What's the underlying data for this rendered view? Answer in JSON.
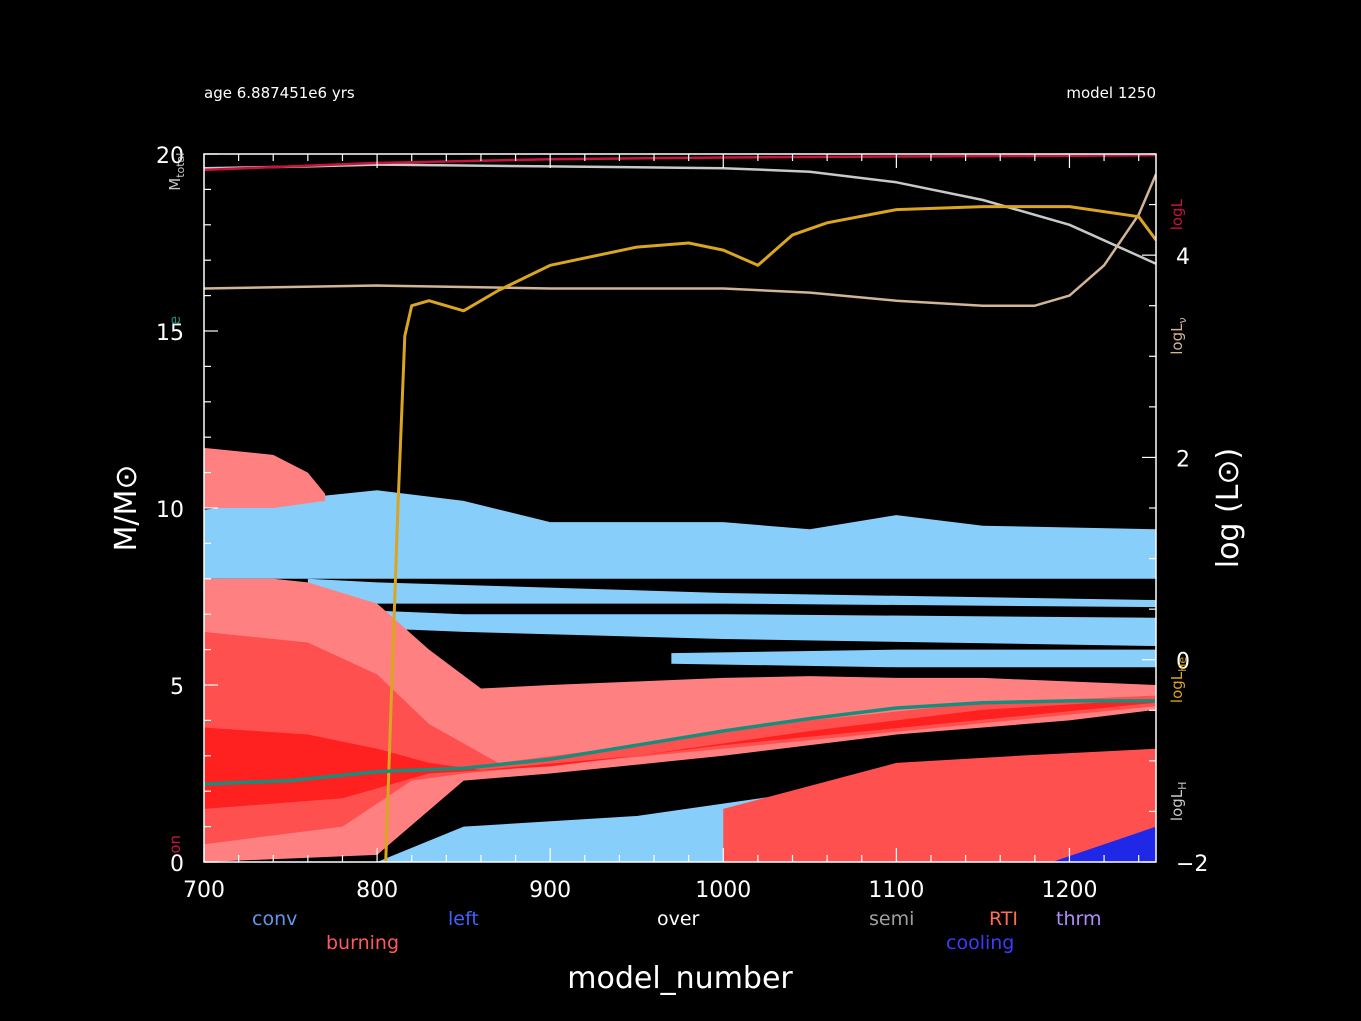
{
  "header": {
    "age": "age 6.887451e6 yrs",
    "model": "model 1250"
  },
  "colors": {
    "background": "#000000",
    "conv": "#87CEFA",
    "burning_light": "#FF8080",
    "burning_mid": "#FF5050",
    "burning_dark": "#FF2020",
    "cooling": "#1E28E6",
    "he_core": "#1A8C7C",
    "log_L": "#C8143C",
    "M_total": "#C8C8C8",
    "log_Lnu": "#D2B496",
    "log_LHe": "#DAA520",
    "log_LH": "#C8C8C8"
  },
  "legend": {
    "row1": [
      {
        "label": "conv",
        "color": "#6495ED"
      },
      {
        "label": "left",
        "color": "#3C64FF"
      },
      {
        "label": "over",
        "color": "#FFFFFF"
      },
      {
        "label": "semi",
        "color": "#A0A0A0"
      },
      {
        "label": "RTI",
        "color": "#FF6E50"
      },
      {
        "label": "thrm",
        "color": "#B48CFF"
      }
    ],
    "row2": [
      {
        "label": "burning",
        "color": "#FF5A5A"
      },
      {
        "label": "cooling",
        "color": "#3C3CFF"
      }
    ]
  },
  "chart_data": {
    "type": "area",
    "xlabel": "model_number",
    "ylabel_left": "M/M⊙",
    "ylabel_right": "log (L⊙)",
    "xlim": [
      700,
      1250
    ],
    "ylim_left": [
      0,
      20
    ],
    "ylim_right": [
      -2,
      5
    ],
    "x_ticks": [
      700,
      800,
      900,
      1000,
      1100,
      1200
    ],
    "y_left_ticks": [
      0,
      5,
      10,
      15,
      20
    ],
    "y_right_ticks": [
      -2,
      0,
      2,
      4
    ],
    "y_right_tick_labels": [
      "−2",
      "0",
      "2",
      "4"
    ],
    "side_labels_left": [
      {
        "text": "M",
        "sub": "total",
        "y": 19.5,
        "color": "#C8C8C8"
      },
      {
        "text": "e",
        "sub": "",
        "y": 15.3,
        "color": "#1A8C7C"
      },
      {
        "text": "on",
        "sub": "",
        "y": 0.5,
        "color": "#C8143C"
      }
    ],
    "side_labels_right": [
      {
        "text": "logL",
        "sub": "",
        "y": 4.4,
        "color": "#C8143C"
      },
      {
        "text": "logL",
        "sub": "ν",
        "y": 3.2,
        "color": "#D2B496"
      },
      {
        "text": "logL",
        "sub": "He",
        "y": -0.2,
        "color": "#DAA520"
      },
      {
        "text": "logL",
        "sub": "H",
        "y": -1.4,
        "color": "#C8C8C8"
      }
    ],
    "series": [
      {
        "name": "M_total",
        "axis": "left",
        "x": [
          700,
          760,
          800,
          900,
          1000,
          1050,
          1100,
          1150,
          1200,
          1250
        ],
        "y": [
          19.6,
          19.65,
          19.7,
          19.65,
          19.6,
          19.5,
          19.2,
          18.7,
          18.0,
          16.9
        ]
      },
      {
        "name": "log_L",
        "axis": "left",
        "x": [
          700,
          800,
          900,
          1000,
          1100,
          1200,
          1250
        ],
        "y": [
          19.55,
          19.75,
          19.85,
          19.9,
          19.93,
          19.95,
          19.97
        ]
      },
      {
        "name": "log_Lnu",
        "axis": "right",
        "x": [
          700,
          800,
          900,
          1000,
          1050,
          1100,
          1150,
          1180,
          1200,
          1220,
          1240,
          1250
        ],
        "y": [
          3.67,
          3.7,
          3.67,
          3.67,
          3.63,
          3.55,
          3.5,
          3.5,
          3.6,
          3.9,
          4.4,
          4.8
        ]
      },
      {
        "name": "log_LHe",
        "axis": "right",
        "x": [
          805,
          808,
          812,
          816,
          820,
          830,
          850,
          870,
          900,
          950,
          980,
          1000,
          1020,
          1040,
          1060,
          1100,
          1150,
          1200,
          1240,
          1250
        ],
        "y": [
          -2.0,
          -0.5,
          1.5,
          3.2,
          3.5,
          3.55,
          3.45,
          3.65,
          3.9,
          4.08,
          4.12,
          4.05,
          3.9,
          4.2,
          4.32,
          4.45,
          4.48,
          4.48,
          4.38,
          4.15
        ]
      },
      {
        "name": "he_core_mass",
        "axis": "left",
        "x": [
          700,
          750,
          800,
          850,
          900,
          950,
          1000,
          1050,
          1100,
          1150,
          1200,
          1250
        ],
        "y": [
          2.2,
          2.3,
          2.55,
          2.65,
          2.9,
          3.3,
          3.7,
          4.05,
          4.35,
          4.5,
          4.55,
          4.55
        ]
      }
    ],
    "regions": [
      {
        "name": "upper_convective_zone",
        "kind": "conv",
        "top": {
          "x": [
            700,
            760,
            800,
            850,
            900,
            1000,
            1050,
            1100,
            1150,
            1250
          ],
          "y": [
            9.95,
            10.3,
            10.5,
            10.2,
            9.6,
            9.6,
            9.4,
            9.8,
            9.5,
            9.4
          ]
        },
        "bottom": {
          "x": [
            700,
            800,
            1000,
            1250
          ],
          "y": [
            8.0,
            8.0,
            8.0,
            8.0
          ]
        }
      },
      {
        "name": "convective_shell_2",
        "kind": "conv",
        "top": {
          "x": [
            760,
            800,
            1000,
            1250
          ],
          "y": [
            8.0,
            7.9,
            7.6,
            7.4
          ]
        },
        "bottom": {
          "x": [
            760,
            800,
            1000,
            1250
          ],
          "y": [
            7.5,
            7.3,
            7.3,
            7.2
          ]
        }
      },
      {
        "name": "convective_shell_3",
        "kind": "conv",
        "top": {
          "x": [
            800,
            850,
            1000,
            1250
          ],
          "y": [
            7.1,
            7.0,
            7.0,
            6.9
          ]
        },
        "bottom": {
          "x": [
            800,
            850,
            1000,
            1250
          ],
          "y": [
            6.6,
            6.5,
            6.3,
            6.1
          ]
        }
      },
      {
        "name": "convective_shell_4",
        "kind": "conv",
        "top": {
          "x": [
            970,
            1100,
            1250
          ],
          "y": [
            5.9,
            6.0,
            6.0
          ]
        },
        "bottom": {
          "x": [
            970,
            1100,
            1250
          ],
          "y": [
            5.6,
            5.5,
            5.5
          ]
        }
      },
      {
        "name": "lower_convective_zone",
        "kind": "conv",
        "top": {
          "x": [
            800,
            850,
            950,
            1050,
            1130,
            1200,
            1250
          ],
          "y": [
            0.0,
            1.0,
            1.3,
            2.0,
            2.6,
            2.3,
            1.8
          ]
        },
        "bottom": {
          "x": [
            800,
            950,
            1250
          ],
          "y": [
            0.0,
            0.0,
            0.0
          ]
        }
      },
      {
        "name": "burning_outer",
        "kind": "burning_light",
        "top": {
          "x": [
            700,
            740,
            760,
            800,
            830,
            860,
            900,
            950,
            1000,
            1050,
            1100,
            1150,
            1250
          ],
          "y": [
            8.0,
            8.0,
            7.9,
            7.3,
            6.0,
            4.9,
            5.0,
            5.1,
            5.2,
            5.25,
            5.2,
            5.2,
            5.0
          ]
        },
        "bottom": {
          "x": [
            700,
            800,
            850,
            900,
            1000,
            1100,
            1200,
            1250
          ],
          "y": [
            0.0,
            0.2,
            2.3,
            2.5,
            3.0,
            3.6,
            4.0,
            4.3
          ]
        }
      },
      {
        "name": "burning_core_cap",
        "kind": "burning_light",
        "top": {
          "x": [
            700,
            740,
            760,
            770
          ],
          "y": [
            11.7,
            11.5,
            11.0,
            10.4
          ]
        },
        "bottom": {
          "x": [
            700,
            740,
            770
          ],
          "y": [
            10.0,
            10.0,
            10.2
          ]
        }
      },
      {
        "name": "burning_mid",
        "kind": "burning_mid",
        "top": {
          "x": [
            700,
            760,
            800,
            830,
            870,
            950,
            1050,
            1150,
            1250
          ],
          "y": [
            6.5,
            6.2,
            5.3,
            3.9,
            2.8,
            3.3,
            4.0,
            4.5,
            4.7
          ]
        },
        "bottom": {
          "x": [
            700,
            780,
            820,
            850,
            1000,
            1250
          ],
          "y": [
            0.5,
            1.0,
            2.3,
            2.5,
            3.2,
            4.4
          ]
        }
      },
      {
        "name": "burning_core",
        "kind": "burning_dark",
        "top": {
          "x": [
            700,
            760,
            800,
            830,
            860,
            950,
            1050,
            1150,
            1250
          ],
          "y": [
            3.8,
            3.6,
            3.2,
            2.8,
            2.6,
            3.0,
            3.7,
            4.3,
            4.6
          ]
        },
        "bottom": {
          "x": [
            700,
            780,
            830,
            900,
            1000,
            1250
          ],
          "y": [
            1.5,
            1.8,
            2.5,
            2.7,
            3.3,
            4.5
          ]
        }
      },
      {
        "name": "lower_burning_shell",
        "kind": "burning_mid",
        "top": {
          "x": [
            1000,
            1100,
            1170,
            1250
          ],
          "y": [
            1.5,
            2.8,
            3.0,
            3.2
          ]
        },
        "bottom": {
          "x": [
            1000,
            1100,
            1170,
            1250
          ],
          "y": [
            0.0,
            0.0,
            0.0,
            0.0
          ]
        }
      },
      {
        "name": "cooling_patch",
        "kind": "cooling",
        "top": {
          "x": [
            1190,
            1250
          ],
          "y": [
            0.0,
            1.0
          ]
        },
        "bottom": {
          "x": [
            1190,
            1250
          ],
          "y": [
            0.0,
            0.0
          ]
        }
      }
    ]
  }
}
